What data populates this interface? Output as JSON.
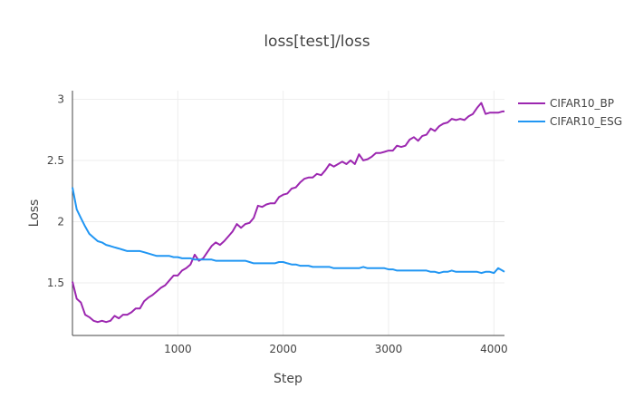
{
  "chart_data": {
    "type": "line",
    "title": "loss[test]/loss",
    "xlabel": "Step",
    "ylabel": "Loss",
    "xlim": [
      0,
      4100
    ],
    "ylim": [
      1.07,
      3.07
    ],
    "xticks": [
      1000,
      2000,
      3000,
      4000
    ],
    "xtick_labels": [
      "1000",
      "2000",
      "3000",
      "4000"
    ],
    "yticks": [
      1.5,
      2,
      2.5,
      3
    ],
    "ytick_labels": [
      "1.5",
      "2",
      "2.5",
      "3"
    ],
    "grid": true,
    "legend_position": "top-right",
    "series": [
      {
        "name": "CIFAR10_BP",
        "color": "#9c27b0",
        "x": [
          0,
          40,
          80,
          120,
          160,
          200,
          240,
          280,
          320,
          360,
          400,
          440,
          480,
          520,
          560,
          600,
          640,
          680,
          720,
          760,
          800,
          840,
          880,
          920,
          960,
          1000,
          1040,
          1080,
          1120,
          1160,
          1200,
          1240,
          1280,
          1320,
          1360,
          1400,
          1440,
          1480,
          1520,
          1560,
          1600,
          1640,
          1680,
          1720,
          1760,
          1800,
          1840,
          1880,
          1920,
          1960,
          2000,
          2040,
          2080,
          2120,
          2160,
          2200,
          2240,
          2280,
          2320,
          2360,
          2400,
          2440,
          2480,
          2520,
          2560,
          2600,
          2640,
          2680,
          2720,
          2760,
          2800,
          2840,
          2880,
          2920,
          2960,
          3000,
          3040,
          3080,
          3120,
          3160,
          3200,
          3240,
          3280,
          3320,
          3360,
          3400,
          3440,
          3480,
          3520,
          3560,
          3600,
          3640,
          3680,
          3720,
          3760,
          3800,
          3840,
          3880,
          3920,
          3960,
          4000,
          4040,
          4080,
          4100
        ],
        "y": [
          1.51,
          1.37,
          1.34,
          1.24,
          1.22,
          1.19,
          1.18,
          1.19,
          1.18,
          1.19,
          1.23,
          1.21,
          1.24,
          1.24,
          1.26,
          1.29,
          1.29,
          1.35,
          1.38,
          1.4,
          1.43,
          1.46,
          1.48,
          1.52,
          1.56,
          1.56,
          1.6,
          1.62,
          1.65,
          1.73,
          1.68,
          1.7,
          1.75,
          1.8,
          1.83,
          1.81,
          1.84,
          1.88,
          1.92,
          1.98,
          1.95,
          1.98,
          1.99,
          2.03,
          2.13,
          2.12,
          2.14,
          2.15,
          2.15,
          2.2,
          2.22,
          2.23,
          2.27,
          2.28,
          2.32,
          2.35,
          2.36,
          2.36,
          2.39,
          2.38,
          2.42,
          2.47,
          2.45,
          2.47,
          2.49,
          2.47,
          2.5,
          2.47,
          2.55,
          2.5,
          2.51,
          2.53,
          2.56,
          2.56,
          2.57,
          2.58,
          2.58,
          2.62,
          2.61,
          2.62,
          2.67,
          2.69,
          2.66,
          2.7,
          2.71,
          2.76,
          2.74,
          2.78,
          2.8,
          2.81,
          2.84,
          2.83,
          2.84,
          2.83,
          2.86,
          2.88,
          2.93,
          2.97,
          2.88,
          2.89,
          2.89,
          2.89,
          2.9,
          2.9
        ]
      },
      {
        "name": "CIFAR10_ESG",
        "color": "#2196f3",
        "x": [
          0,
          40,
          80,
          120,
          160,
          200,
          240,
          280,
          320,
          360,
          400,
          440,
          480,
          520,
          560,
          600,
          640,
          680,
          720,
          760,
          800,
          840,
          880,
          920,
          960,
          1000,
          1040,
          1080,
          1120,
          1160,
          1200,
          1240,
          1280,
          1320,
          1360,
          1400,
          1440,
          1480,
          1520,
          1560,
          1600,
          1640,
          1680,
          1720,
          1760,
          1800,
          1840,
          1880,
          1920,
          1960,
          2000,
          2040,
          2080,
          2120,
          2160,
          2200,
          2240,
          2280,
          2320,
          2360,
          2400,
          2440,
          2480,
          2520,
          2560,
          2600,
          2640,
          2680,
          2720,
          2760,
          2800,
          2840,
          2880,
          2920,
          2960,
          3000,
          3040,
          3080,
          3120,
          3160,
          3200,
          3240,
          3280,
          3320,
          3360,
          3400,
          3440,
          3480,
          3520,
          3560,
          3600,
          3640,
          3680,
          3720,
          3760,
          3800,
          3840,
          3880,
          3920,
          3960,
          4000,
          4040,
          4080,
          4100
        ],
        "y": [
          2.28,
          2.1,
          2.03,
          1.96,
          1.9,
          1.87,
          1.84,
          1.83,
          1.81,
          1.8,
          1.79,
          1.78,
          1.77,
          1.76,
          1.76,
          1.76,
          1.76,
          1.75,
          1.74,
          1.73,
          1.72,
          1.72,
          1.72,
          1.72,
          1.71,
          1.71,
          1.7,
          1.7,
          1.7,
          1.69,
          1.69,
          1.69,
          1.69,
          1.69,
          1.68,
          1.68,
          1.68,
          1.68,
          1.68,
          1.68,
          1.68,
          1.68,
          1.67,
          1.66,
          1.66,
          1.66,
          1.66,
          1.66,
          1.66,
          1.67,
          1.67,
          1.66,
          1.65,
          1.65,
          1.64,
          1.64,
          1.64,
          1.63,
          1.63,
          1.63,
          1.63,
          1.63,
          1.62,
          1.62,
          1.62,
          1.62,
          1.62,
          1.62,
          1.62,
          1.63,
          1.62,
          1.62,
          1.62,
          1.62,
          1.62,
          1.61,
          1.61,
          1.6,
          1.6,
          1.6,
          1.6,
          1.6,
          1.6,
          1.6,
          1.6,
          1.59,
          1.59,
          1.58,
          1.59,
          1.59,
          1.6,
          1.59,
          1.59,
          1.59,
          1.59,
          1.59,
          1.59,
          1.58,
          1.59,
          1.59,
          1.58,
          1.62,
          1.6,
          1.59
        ]
      }
    ]
  }
}
